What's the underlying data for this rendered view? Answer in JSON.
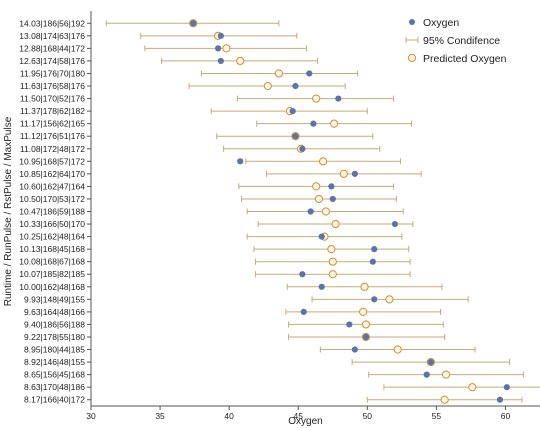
{
  "colors": {
    "observed": "#5b73a8",
    "ci": "#c8a978",
    "predicted_fill": "#fbf4e4",
    "predicted_stroke": "#c9932f",
    "axis": "#555555"
  },
  "chart_data": {
    "type": "scatter",
    "orientation": "horizontal",
    "xlabel": "Oxygen",
    "ylabel": "Runtime / RunPulse / RstPulse / MaxPulse",
    "xlim": [
      30,
      62.5
    ],
    "xticks": [
      30,
      35,
      40,
      45,
      50,
      55,
      60
    ],
    "grid": false,
    "legend_position": "top-right",
    "legend": {
      "observed": "Oxygen",
      "ci": "95% Condifence",
      "predicted": "Predicted Oxygen"
    },
    "rows": [
      {
        "label": "14.03|186|56|192",
        "observed": 37.4,
        "predicted": 37.4,
        "lo": 31.1,
        "hi": 43.6
      },
      {
        "label": "13.08|174|63|176",
        "observed": 39.4,
        "predicted": 39.2,
        "lo": 33.6,
        "hi": 44.9
      },
      {
        "label": "12.88|168|44|172",
        "observed": 39.2,
        "predicted": 39.8,
        "lo": 33.9,
        "hi": 45.6
      },
      {
        "label": "12.63|174|58|176",
        "observed": 39.4,
        "predicted": 40.8,
        "lo": 35.1,
        "hi": 46.4
      },
      {
        "label": "11.95|176|70|180",
        "observed": 45.8,
        "predicted": 43.6,
        "lo": 38.0,
        "hi": 49.3
      },
      {
        "label": "11.63|176|58|176",
        "observed": 44.8,
        "predicted": 42.8,
        "lo": 37.1,
        "hi": 48.4
      },
      {
        "label": "11.50|170|52|176",
        "observed": 47.9,
        "predicted": 46.3,
        "lo": 40.6,
        "hi": 51.9
      },
      {
        "label": "11.37|178|62|182",
        "observed": 44.6,
        "predicted": 44.4,
        "lo": 38.7,
        "hi": 50.0
      },
      {
        "label": "11.17|156|62|165",
        "observed": 46.1,
        "predicted": 47.6,
        "lo": 42.0,
        "hi": 53.2
      },
      {
        "label": "11.12|176|51|176",
        "observed": 44.8,
        "predicted": 44.8,
        "lo": 39.1,
        "hi": 50.4
      },
      {
        "label": "11.08|172|48|172",
        "observed": 45.3,
        "predicted": 45.2,
        "lo": 39.6,
        "hi": 50.9
      },
      {
        "label": "10.95|168|57|172",
        "observed": 40.8,
        "predicted": 46.8,
        "lo": 41.2,
        "hi": 52.4
      },
      {
        "label": "10.85|162|64|170",
        "observed": 49.1,
        "predicted": 48.3,
        "lo": 42.7,
        "hi": 53.9
      },
      {
        "label": "10.60|162|47|164",
        "observed": 47.4,
        "predicted": 46.3,
        "lo": 40.7,
        "hi": 51.9
      },
      {
        "label": "10.50|170|53|172",
        "observed": 47.5,
        "predicted": 46.5,
        "lo": 40.9,
        "hi": 52.1
      },
      {
        "label": "10.47|186|59|188",
        "observed": 45.9,
        "predicted": 47.0,
        "lo": 41.3,
        "hi": 52.6
      },
      {
        "label": "10.33|166|50|170",
        "observed": 52.0,
        "predicted": 47.7,
        "lo": 42.1,
        "hi": 53.3
      },
      {
        "label": "10.25|162|48|164",
        "observed": 46.7,
        "predicted": 46.9,
        "lo": 41.3,
        "hi": 52.5
      },
      {
        "label": "10.13|168|45|168",
        "observed": 50.5,
        "predicted": 47.4,
        "lo": 41.8,
        "hi": 53.0
      },
      {
        "label": "10.08|168|67|168",
        "observed": 50.4,
        "predicted": 47.5,
        "lo": 41.9,
        "hi": 53.1
      },
      {
        "label": "10.07|185|82|185",
        "observed": 45.3,
        "predicted": 47.5,
        "lo": 41.9,
        "hi": 53.1
      },
      {
        "label": "10.00|162|48|168",
        "observed": 46.7,
        "predicted": 49.8,
        "lo": 44.2,
        "hi": 55.4
      },
      {
        "label": "9.93|148|49|155",
        "observed": 50.5,
        "predicted": 51.6,
        "lo": 46.0,
        "hi": 57.3
      },
      {
        "label": "9.63|164|48|166",
        "observed": 45.4,
        "predicted": 49.7,
        "lo": 44.1,
        "hi": 55.3
      },
      {
        "label": "9.40|186|56|188",
        "observed": 48.7,
        "predicted": 49.9,
        "lo": 44.3,
        "hi": 55.5
      },
      {
        "label": "9.22|178|55|180",
        "observed": 49.9,
        "predicted": 49.9,
        "lo": 44.3,
        "hi": 55.6
      },
      {
        "label": "8.95|180|44|185",
        "observed": 49.1,
        "predicted": 52.2,
        "lo": 46.6,
        "hi": 57.8
      },
      {
        "label": "8.92|146|48|155",
        "observed": 54.6,
        "predicted": 54.6,
        "lo": 48.9,
        "hi": 60.3
      },
      {
        "label": "8.65|156|45|168",
        "observed": 54.3,
        "predicted": 55.7,
        "lo": 50.1,
        "hi": 61.3
      },
      {
        "label": "8.63|170|48|186",
        "observed": 60.1,
        "predicted": 57.6,
        "lo": 51.2,
        "hi": 63.9
      },
      {
        "label": "8.17|166|40|172",
        "observed": 59.6,
        "predicted": 55.6,
        "lo": 50.0,
        "hi": 61.2
      }
    ]
  }
}
